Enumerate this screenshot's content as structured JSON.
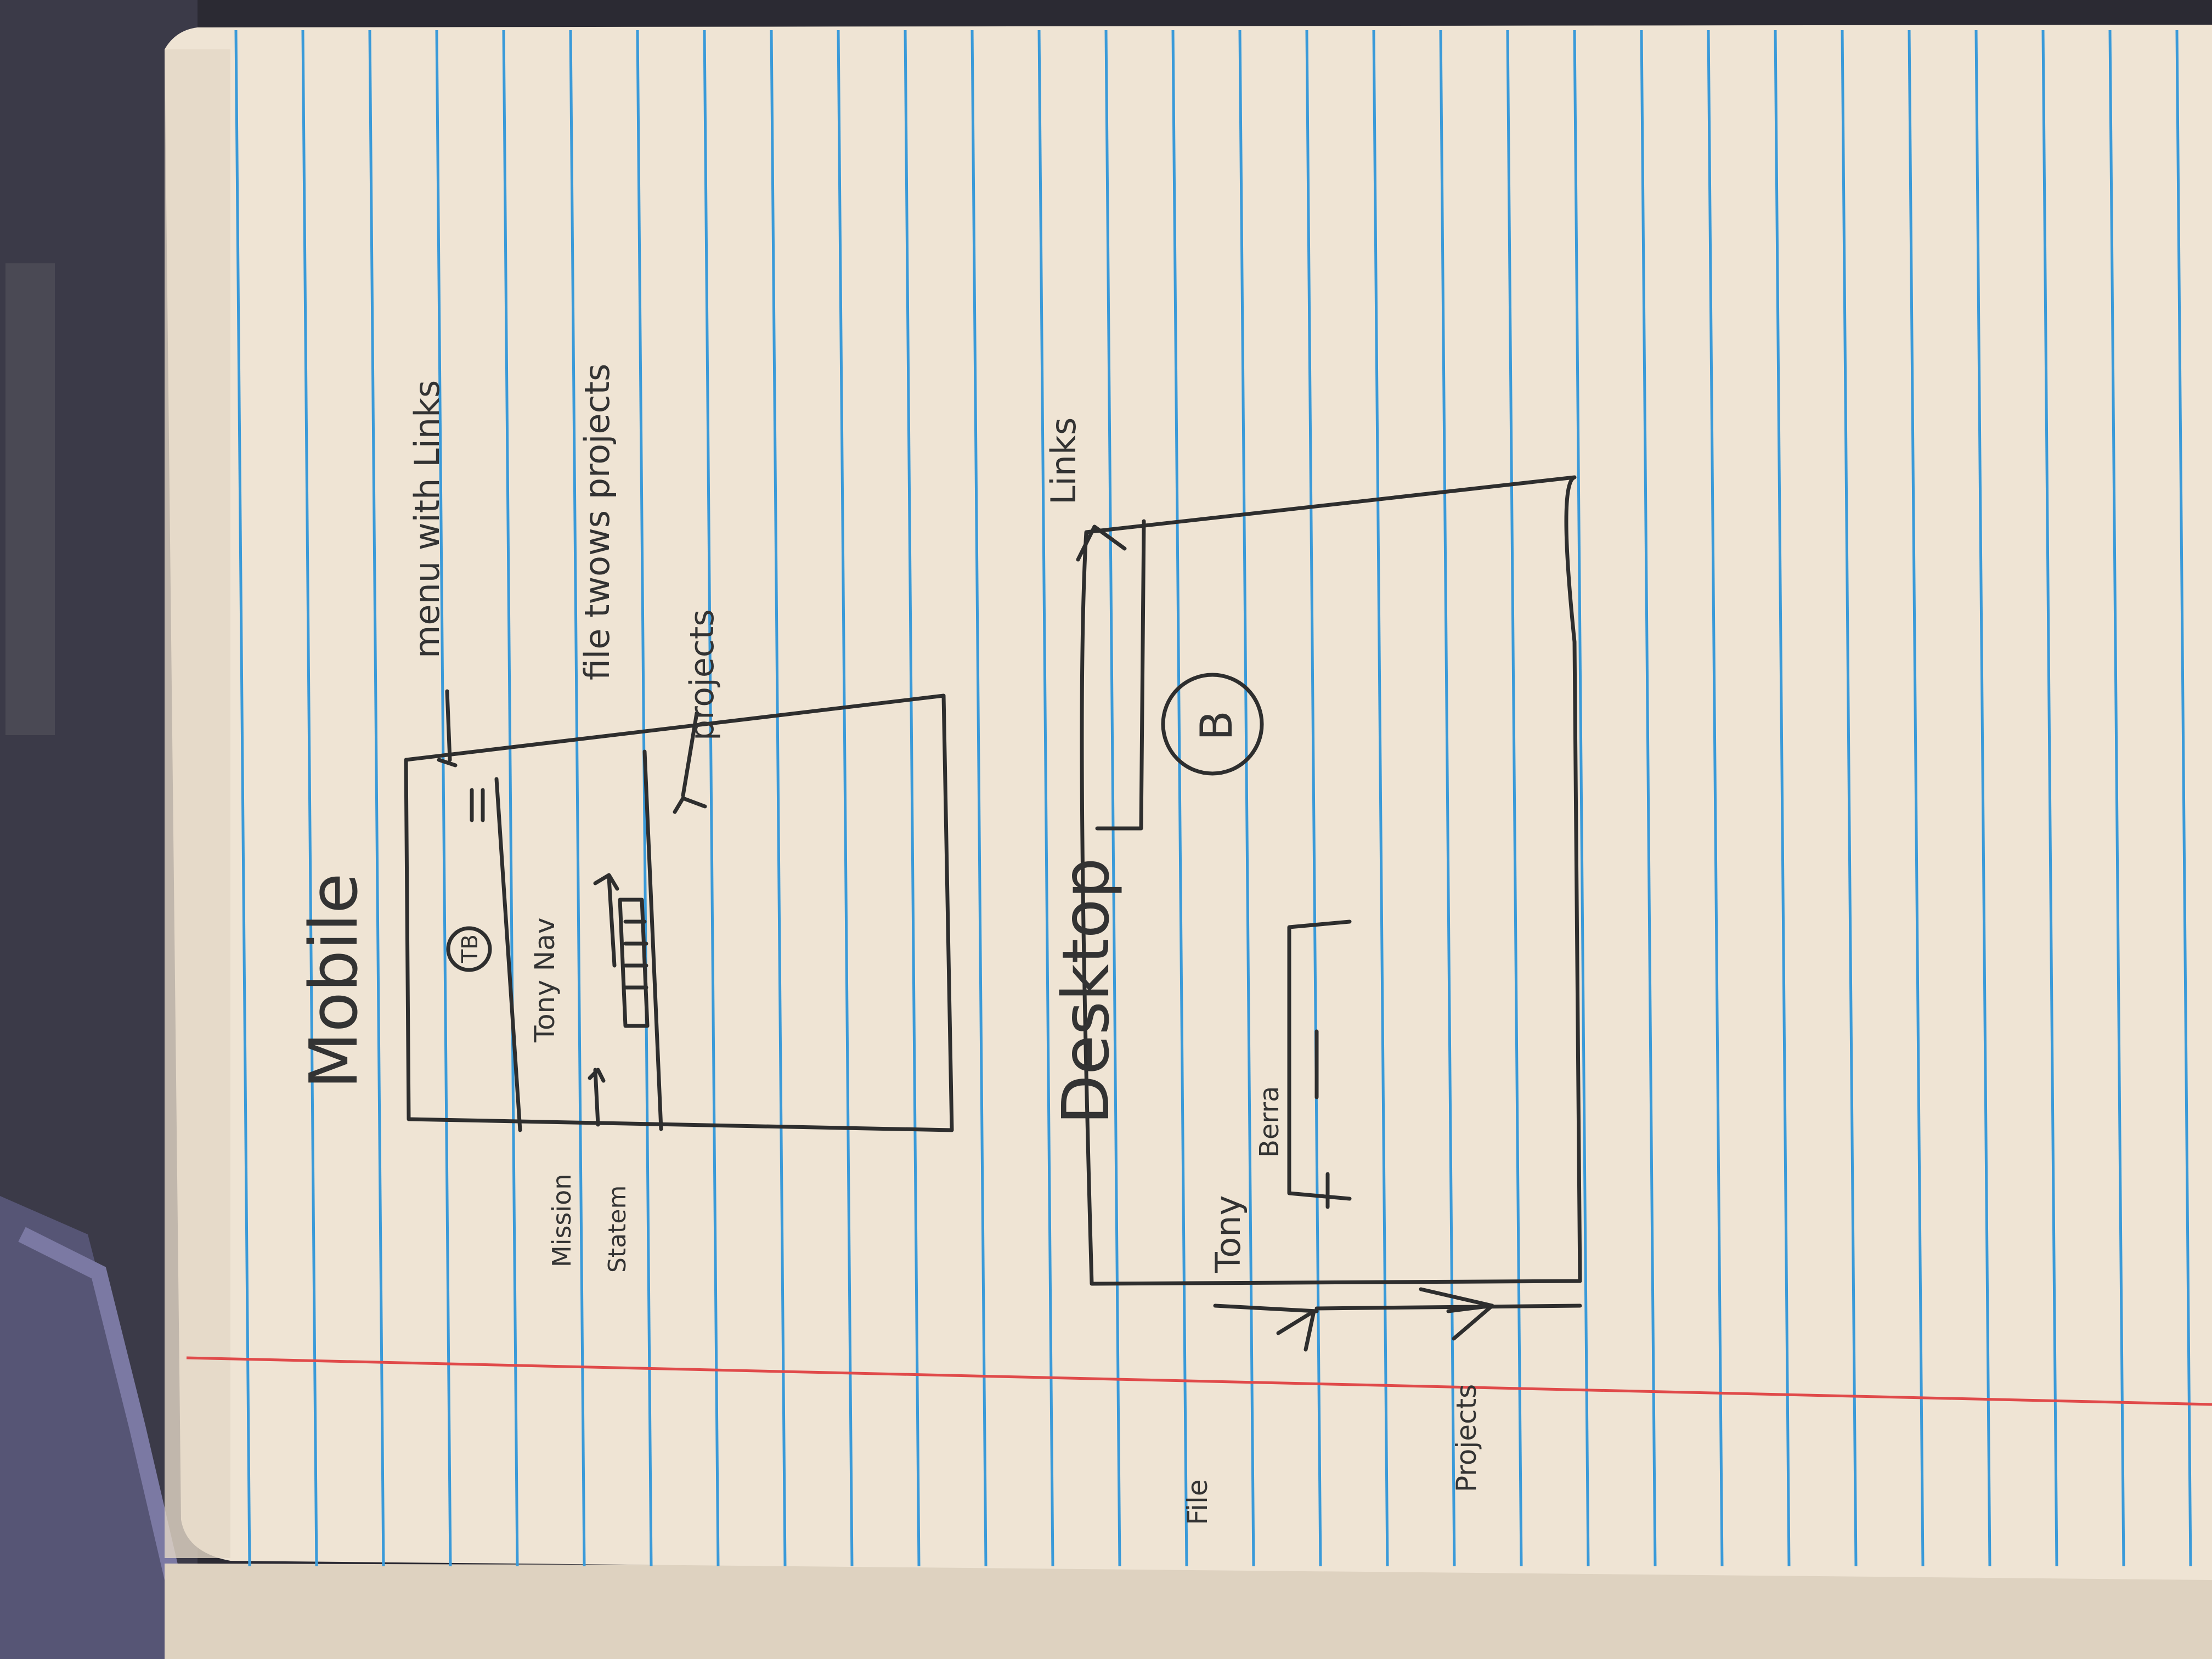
{
  "photo": {
    "subject": "sketch",
    "colors": {
      "paper": "#efe4d4",
      "paper_shadow": "#cdbfae",
      "rule_line": "#3a9ad9",
      "margin_line": "#e04a4a",
      "pencil": "#2e2e2e",
      "background": "#2b2a33"
    }
  },
  "sketch": {
    "mobile_heading": "Mobile",
    "mobile": {
      "menu_note": "menu with Links",
      "logo": "TB",
      "tony_nav": "Tony Nav",
      "mission_line1": "Mission",
      "mission_line2": "Statem",
      "file_note": "file twows projects",
      "projects_note": "projects"
    },
    "desktop_heading": "Desktop",
    "desktop": {
      "links_note": "Links",
      "logo": "B",
      "name_line1": "Tony",
      "name_line2": "Berra",
      "file_label": "File",
      "projects_label": "Projects"
    }
  }
}
